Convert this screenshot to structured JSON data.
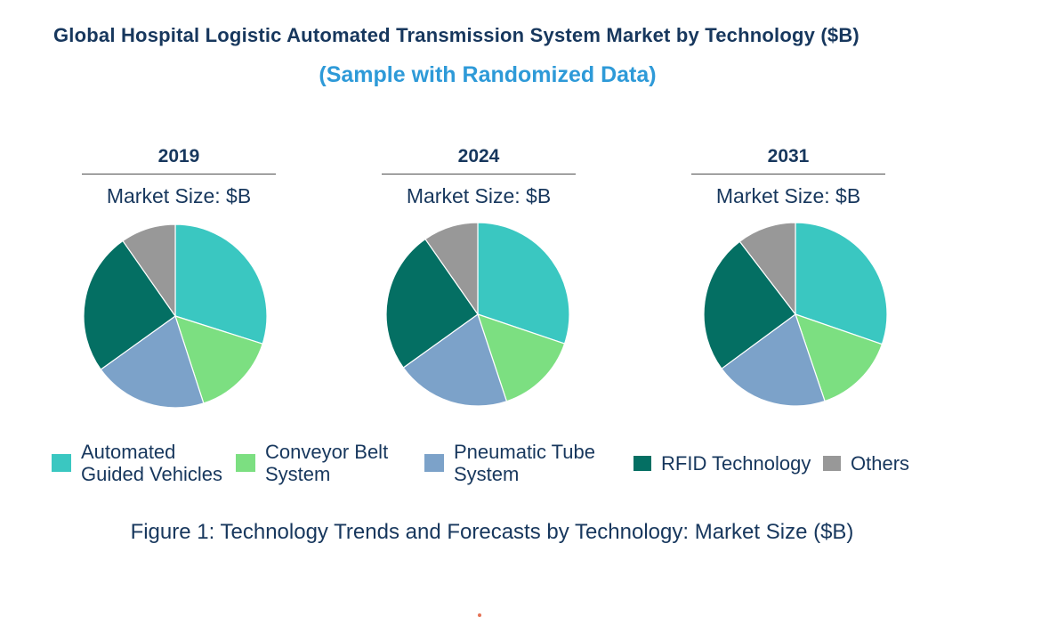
{
  "page": {
    "title": "Global Hospital Logistic Automated Transmission System Market by Technology ($B)",
    "subtitle": "(Sample with Randomized Data)",
    "title_color": "#17375D",
    "subtitle_color": "#2E9AD8",
    "figure_caption": "Figure 1: Technology Trends and Forecasts by Technology: Market Size ($B)"
  },
  "chart_data": {
    "type": "pie",
    "layout": "three pies in a row, shared legend at bottom",
    "note": "No numeric data labels shown; slice shares (%) estimated from slice angles",
    "start_angle_deg": 0,
    "direction": "clockwise",
    "categories": [
      "Automated Guided Vehicles",
      "Conveyor Belt System",
      "Pneumatic Tube System",
      "RFID Technology",
      "Others"
    ],
    "colors": [
      "#3AC7C1",
      "#7CDF81",
      "#7CA2C9",
      "#046F63",
      "#989898"
    ],
    "pies": [
      {
        "title": "2019",
        "subtitle": "Market Size: $B",
        "values_pct": [
          29.9,
          15.1,
          20.1,
          25.2,
          9.7
        ]
      },
      {
        "title": "2024",
        "subtitle": "Market Size: $B",
        "values_pct": [
          30.2,
          14.7,
          20.2,
          25.2,
          9.7
        ]
      },
      {
        "title": "2031",
        "subtitle": "Market Size: $B",
        "values_pct": [
          30.3,
          14.5,
          20.1,
          24.7,
          10.4
        ]
      }
    ]
  },
  "legend": {
    "position": "bottom",
    "items": [
      {
        "lines": [
          "Automated",
          "Guided Vehicles"
        ],
        "color": "#3AC7C1"
      },
      {
        "lines": [
          "Conveyor Belt",
          "System"
        ],
        "color": "#7CDF81"
      },
      {
        "lines": [
          "Pneumatic Tube",
          "System"
        ],
        "color": "#7CA2C9"
      },
      {
        "lines": [
          "RFID Technology"
        ],
        "color": "#046F63"
      },
      {
        "lines": [
          "Others"
        ],
        "color": "#989898"
      }
    ]
  }
}
